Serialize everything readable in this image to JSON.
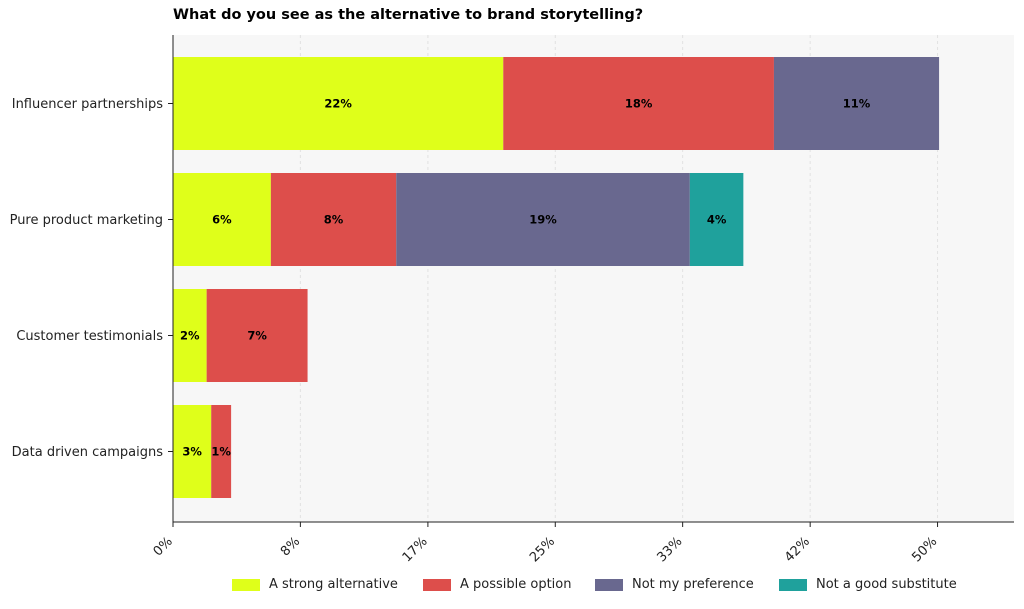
{
  "chart_data": {
    "type": "bar",
    "orientation": "horizontal",
    "stacked": true,
    "title": "What do you see as the alternative to brand storytelling?",
    "xlabel": "",
    "ylabel": "",
    "categories": [
      "Influencer partnerships",
      "Pure product marketing",
      "Customer testimonials",
      "Data driven campaigns"
    ],
    "series": [
      {
        "name": "A strong alternative",
        "color": "#dfff1a",
        "values": [
          21.6,
          6.4,
          2.2,
          2.5
        ],
        "labels": [
          "22%",
          "6%",
          "2%",
          "3%"
        ]
      },
      {
        "name": "A possible option",
        "color": "#dd4e4b",
        "values": [
          17.7,
          8.2,
          6.6,
          1.3
        ],
        "labels": [
          "18%",
          "8%",
          "7%",
          "1%"
        ]
      },
      {
        "name": "Not my preference",
        "color": "#69688f",
        "values": [
          10.8,
          19.2,
          0,
          0
        ],
        "labels": [
          "11%",
          "19%",
          "",
          ""
        ]
      },
      {
        "name": "Not a good substitute",
        "color": "#1fa19c",
        "values": [
          0,
          3.5,
          0,
          0
        ],
        "labels": [
          "",
          "4%",
          "",
          ""
        ]
      }
    ],
    "xlim": [
      0,
      55
    ],
    "xticks": [
      0,
      8.33,
      16.67,
      25,
      33.33,
      41.67,
      50
    ],
    "xtick_labels": [
      "0%",
      "8%",
      "17%",
      "25%",
      "33%",
      "42%",
      "50%"
    ],
    "grid": "vertical",
    "legend_position": "bottom"
  }
}
